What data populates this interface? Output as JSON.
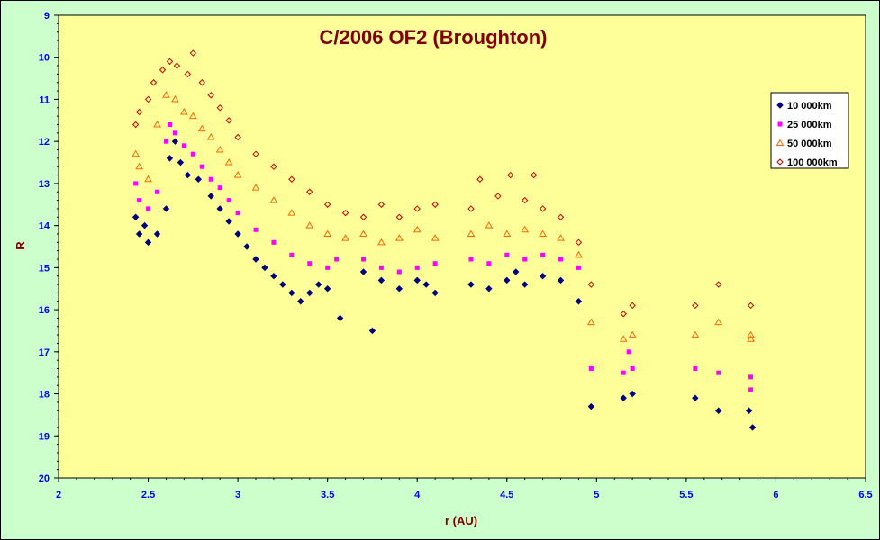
{
  "chart_data": {
    "type": "scatter",
    "title": "C/2006 OF2 (Broughton)",
    "xlabel": "r (AU)",
    "ylabel": "R",
    "xlim": [
      2,
      6.5
    ],
    "ylim": [
      9,
      20
    ],
    "y_inverted": true,
    "x_ticks": [
      "2",
      "2.5",
      "3",
      "3.5",
      "4",
      "4.5",
      "5",
      "5.5",
      "6",
      "6.5"
    ],
    "y_ticks": [
      "9",
      "10",
      "11",
      "12",
      "13",
      "14",
      "15",
      "16",
      "17",
      "18",
      "19",
      "20"
    ],
    "grid": false,
    "legend_position": "top-right",
    "plot_background": "#ffff99",
    "page_background": "#ccffcc",
    "series": [
      {
        "name": "10 000km",
        "marker": "diamond-filled",
        "color": "#000080",
        "points": [
          [
            2.43,
            13.8
          ],
          [
            2.45,
            14.2
          ],
          [
            2.48,
            14.0
          ],
          [
            2.5,
            14.4
          ],
          [
            2.55,
            14.2
          ],
          [
            2.6,
            13.6
          ],
          [
            2.62,
            12.4
          ],
          [
            2.65,
            12.0
          ],
          [
            2.68,
            12.5
          ],
          [
            2.72,
            12.8
          ],
          [
            2.78,
            12.9
          ],
          [
            2.85,
            13.3
          ],
          [
            2.9,
            13.6
          ],
          [
            2.95,
            13.9
          ],
          [
            3.0,
            14.2
          ],
          [
            3.05,
            14.5
          ],
          [
            3.1,
            14.8
          ],
          [
            3.15,
            15.0
          ],
          [
            3.2,
            15.2
          ],
          [
            3.25,
            15.4
          ],
          [
            3.3,
            15.6
          ],
          [
            3.35,
            15.8
          ],
          [
            3.4,
            15.6
          ],
          [
            3.45,
            15.4
          ],
          [
            3.5,
            15.5
          ],
          [
            3.57,
            16.2
          ],
          [
            3.7,
            15.1
          ],
          [
            3.75,
            16.5
          ],
          [
            3.8,
            15.3
          ],
          [
            3.9,
            15.5
          ],
          [
            4.0,
            15.3
          ],
          [
            4.05,
            15.4
          ],
          [
            4.1,
            15.6
          ],
          [
            4.3,
            15.4
          ],
          [
            4.4,
            15.5
          ],
          [
            4.5,
            15.3
          ],
          [
            4.55,
            15.1
          ],
          [
            4.6,
            15.4
          ],
          [
            4.7,
            15.2
          ],
          [
            4.8,
            15.3
          ],
          [
            4.9,
            15.8
          ],
          [
            4.97,
            18.3
          ],
          [
            5.15,
            18.1
          ],
          [
            5.2,
            18.0
          ],
          [
            5.55,
            18.1
          ],
          [
            5.68,
            18.4
          ],
          [
            5.85,
            18.4
          ],
          [
            5.87,
            18.8
          ]
        ]
      },
      {
        "name": "25 000km",
        "marker": "square-filled",
        "color": "#ff00ff",
        "points": [
          [
            2.43,
            13.0
          ],
          [
            2.45,
            13.4
          ],
          [
            2.5,
            13.6
          ],
          [
            2.55,
            13.2
          ],
          [
            2.6,
            12.0
          ],
          [
            2.62,
            11.6
          ],
          [
            2.65,
            11.8
          ],
          [
            2.7,
            12.1
          ],
          [
            2.75,
            12.3
          ],
          [
            2.8,
            12.6
          ],
          [
            2.85,
            12.9
          ],
          [
            2.9,
            13.1
          ],
          [
            2.95,
            13.4
          ],
          [
            3.0,
            13.7
          ],
          [
            3.1,
            14.1
          ],
          [
            3.2,
            14.4
          ],
          [
            3.3,
            14.7
          ],
          [
            3.4,
            14.9
          ],
          [
            3.5,
            15.0
          ],
          [
            3.55,
            14.8
          ],
          [
            3.7,
            14.8
          ],
          [
            3.8,
            15.0
          ],
          [
            3.9,
            15.1
          ],
          [
            4.0,
            15.0
          ],
          [
            4.1,
            14.9
          ],
          [
            4.3,
            14.8
          ],
          [
            4.4,
            14.9
          ],
          [
            4.5,
            14.7
          ],
          [
            4.6,
            14.8
          ],
          [
            4.7,
            14.7
          ],
          [
            4.8,
            14.8
          ],
          [
            4.9,
            15.0
          ],
          [
            4.97,
            17.4
          ],
          [
            5.15,
            17.5
          ],
          [
            5.18,
            17.0
          ],
          [
            5.2,
            17.4
          ],
          [
            5.55,
            17.4
          ],
          [
            5.68,
            17.5
          ],
          [
            5.86,
            17.6
          ],
          [
            5.86,
            17.9
          ]
        ]
      },
      {
        "name": "50 000km",
        "marker": "triangle-open",
        "color": "#ff6600",
        "points": [
          [
            2.43,
            12.3
          ],
          [
            2.45,
            12.6
          ],
          [
            2.5,
            12.9
          ],
          [
            2.55,
            11.6
          ],
          [
            2.6,
            10.9
          ],
          [
            2.65,
            11.0
          ],
          [
            2.7,
            11.3
          ],
          [
            2.75,
            11.4
          ],
          [
            2.8,
            11.7
          ],
          [
            2.85,
            11.9
          ],
          [
            2.9,
            12.2
          ],
          [
            2.95,
            12.5
          ],
          [
            3.0,
            12.8
          ],
          [
            3.1,
            13.1
          ],
          [
            3.2,
            13.4
          ],
          [
            3.3,
            13.7
          ],
          [
            3.4,
            14.0
          ],
          [
            3.5,
            14.2
          ],
          [
            3.6,
            14.3
          ],
          [
            3.7,
            14.2
          ],
          [
            3.8,
            14.4
          ],
          [
            3.9,
            14.3
          ],
          [
            4.0,
            14.1
          ],
          [
            4.1,
            14.3
          ],
          [
            4.3,
            14.2
          ],
          [
            4.4,
            14.0
          ],
          [
            4.5,
            14.2
          ],
          [
            4.6,
            14.1
          ],
          [
            4.7,
            14.2
          ],
          [
            4.8,
            14.3
          ],
          [
            4.9,
            14.7
          ],
          [
            4.97,
            16.3
          ],
          [
            5.15,
            16.7
          ],
          [
            5.2,
            16.6
          ],
          [
            5.55,
            16.6
          ],
          [
            5.68,
            16.3
          ],
          [
            5.86,
            16.6
          ],
          [
            5.86,
            16.7
          ]
        ]
      },
      {
        "name": "100 000km",
        "marker": "diamond-open",
        "color": "#cc0000",
        "points": [
          [
            2.43,
            11.6
          ],
          [
            2.45,
            11.3
          ],
          [
            2.5,
            11.0
          ],
          [
            2.53,
            10.6
          ],
          [
            2.58,
            10.3
          ],
          [
            2.62,
            10.1
          ],
          [
            2.66,
            10.2
          ],
          [
            2.72,
            10.4
          ],
          [
            2.75,
            9.9
          ],
          [
            2.8,
            10.6
          ],
          [
            2.85,
            10.9
          ],
          [
            2.9,
            11.2
          ],
          [
            2.95,
            11.5
          ],
          [
            3.0,
            11.9
          ],
          [
            3.1,
            12.3
          ],
          [
            3.2,
            12.6
          ],
          [
            3.3,
            12.9
          ],
          [
            3.4,
            13.2
          ],
          [
            3.5,
            13.5
          ],
          [
            3.6,
            13.7
          ],
          [
            3.7,
            13.8
          ],
          [
            3.8,
            13.5
          ],
          [
            3.9,
            13.8
          ],
          [
            4.0,
            13.6
          ],
          [
            4.1,
            13.5
          ],
          [
            4.3,
            13.6
          ],
          [
            4.35,
            12.9
          ],
          [
            4.45,
            13.3
          ],
          [
            4.52,
            12.8
          ],
          [
            4.6,
            13.4
          ],
          [
            4.65,
            12.8
          ],
          [
            4.7,
            13.6
          ],
          [
            4.8,
            13.8
          ],
          [
            4.9,
            14.4
          ],
          [
            4.97,
            15.4
          ],
          [
            5.15,
            16.1
          ],
          [
            5.2,
            15.9
          ],
          [
            5.55,
            15.9
          ],
          [
            5.68,
            15.4
          ],
          [
            5.86,
            15.9
          ]
        ]
      }
    ]
  }
}
